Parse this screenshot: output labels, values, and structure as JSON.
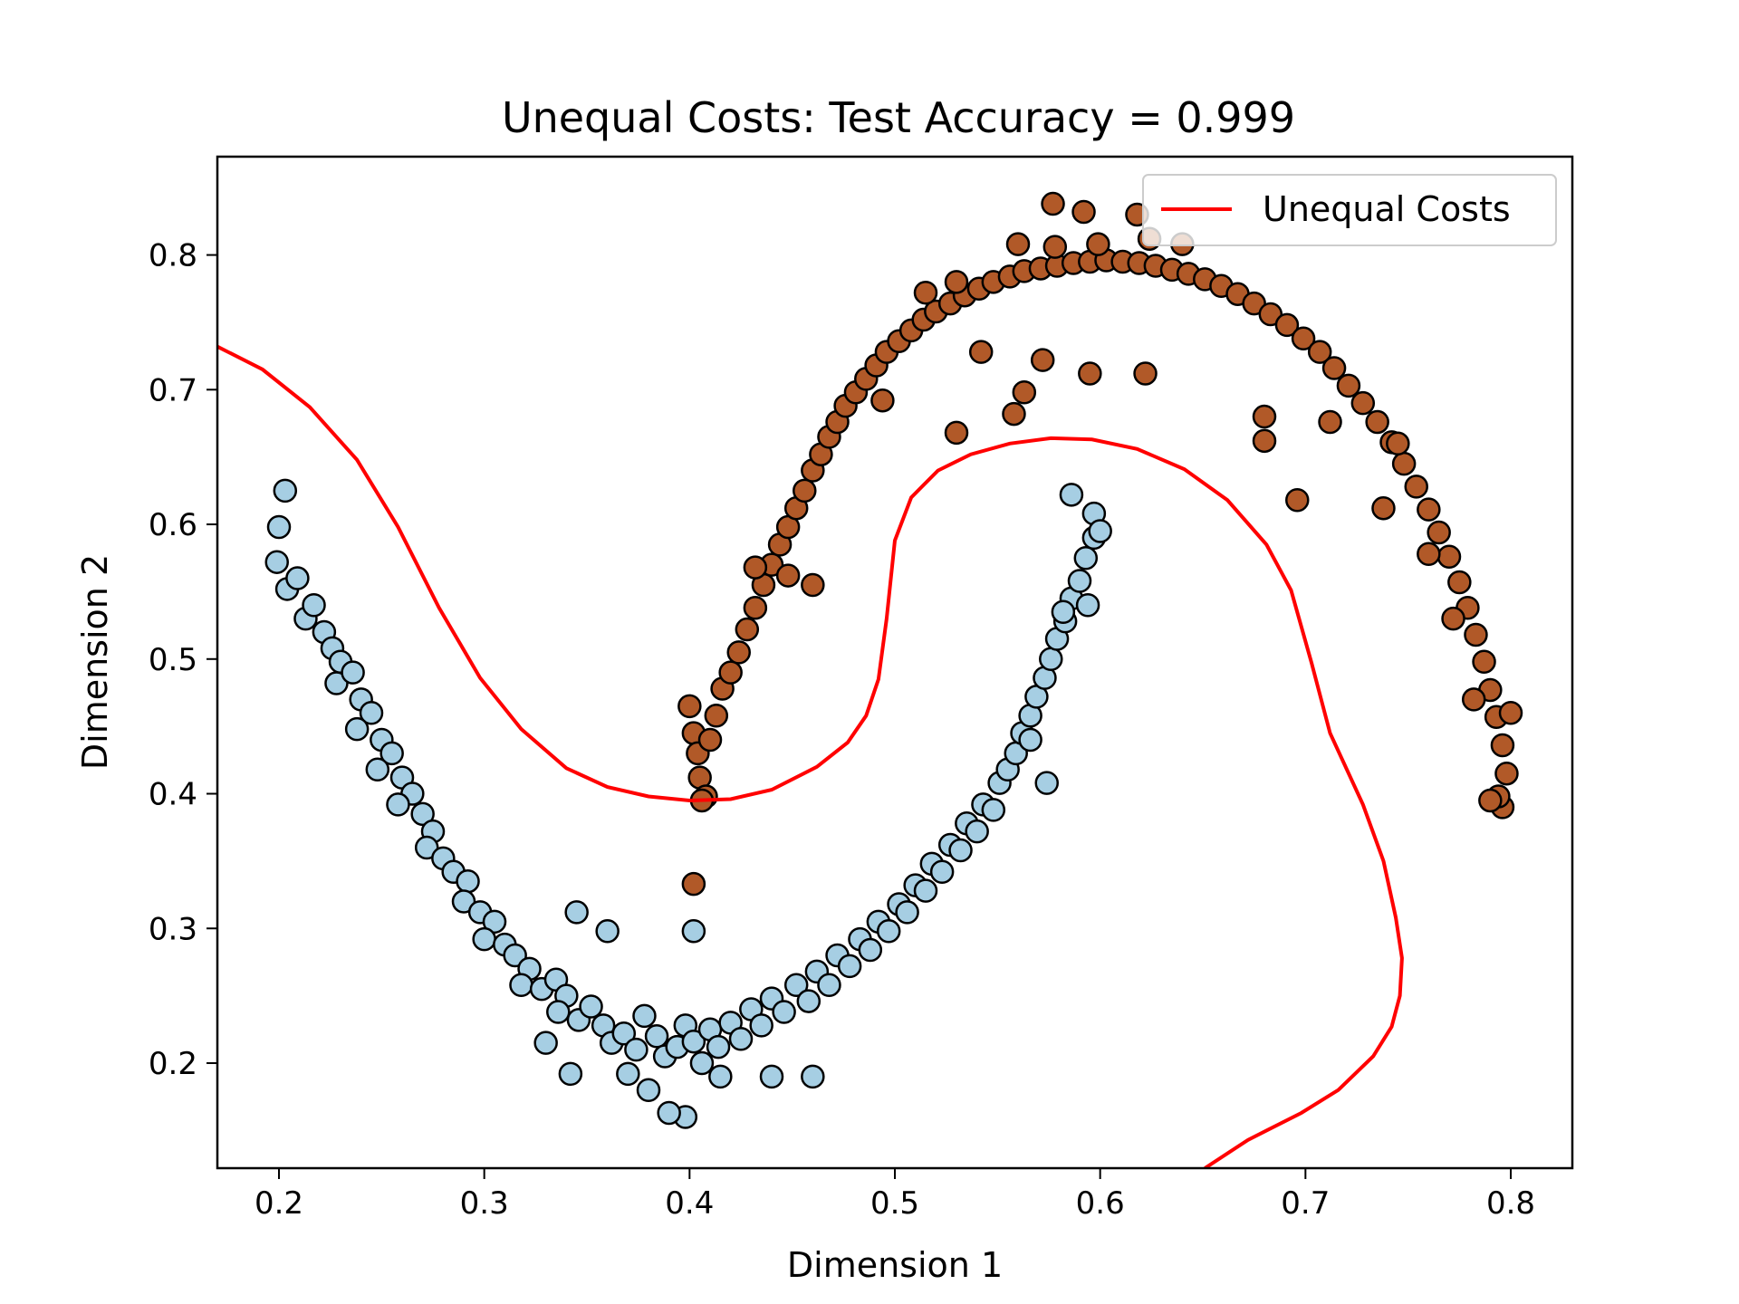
{
  "chart_data": {
    "type": "scatter",
    "title": "Unequal Costs: Test Accuracy = 0.999",
    "xlabel": "Dimension 1",
    "ylabel": "Dimension 2",
    "xlim": [
      0.17,
      0.83
    ],
    "ylim": [
      0.122,
      0.873
    ],
    "xticks": [
      {
        "value": 0.2,
        "label": "0.2"
      },
      {
        "value": 0.3,
        "label": "0.3"
      },
      {
        "value": 0.4,
        "label": "0.4"
      },
      {
        "value": 0.5,
        "label": "0.5"
      },
      {
        "value": 0.6,
        "label": "0.6"
      },
      {
        "value": 0.7,
        "label": "0.7"
      },
      {
        "value": 0.8,
        "label": "0.8"
      }
    ],
    "yticks": [
      {
        "value": 0.2,
        "label": "0.2"
      },
      {
        "value": 0.3,
        "label": "0.3"
      },
      {
        "value": 0.4,
        "label": "0.4"
      },
      {
        "value": 0.5,
        "label": "0.5"
      },
      {
        "value": 0.6,
        "label": "0.6"
      },
      {
        "value": 0.7,
        "label": "0.7"
      },
      {
        "value": 0.8,
        "label": "0.8"
      }
    ],
    "grid": false,
    "legend": {
      "position": "top-right",
      "entries": [
        {
          "label": "Unequal Costs",
          "color": "#ff0000",
          "marker": "line"
        }
      ]
    },
    "boundary": {
      "name": "Unequal Costs",
      "color": "#ff0000",
      "points": [
        [
          0.17,
          0.732
        ],
        [
          0.192,
          0.715
        ],
        [
          0.215,
          0.687
        ],
        [
          0.238,
          0.648
        ],
        [
          0.258,
          0.598
        ],
        [
          0.278,
          0.538
        ],
        [
          0.298,
          0.486
        ],
        [
          0.318,
          0.448
        ],
        [
          0.34,
          0.419
        ],
        [
          0.36,
          0.405
        ],
        [
          0.38,
          0.398
        ],
        [
          0.4,
          0.395
        ],
        [
          0.42,
          0.396
        ],
        [
          0.44,
          0.403
        ],
        [
          0.462,
          0.42
        ],
        [
          0.477,
          0.438
        ],
        [
          0.486,
          0.458
        ],
        [
          0.492,
          0.485
        ],
        [
          0.496,
          0.53
        ],
        [
          0.5,
          0.588
        ],
        [
          0.508,
          0.62
        ],
        [
          0.521,
          0.64
        ],
        [
          0.537,
          0.652
        ],
        [
          0.556,
          0.66
        ],
        [
          0.576,
          0.664
        ],
        [
          0.596,
          0.663
        ],
        [
          0.618,
          0.656
        ],
        [
          0.641,
          0.641
        ],
        [
          0.662,
          0.618
        ],
        [
          0.681,
          0.585
        ],
        [
          0.693,
          0.551
        ],
        [
          0.703,
          0.497
        ],
        [
          0.712,
          0.445
        ],
        [
          0.728,
          0.392
        ],
        [
          0.738,
          0.35
        ],
        [
          0.744,
          0.308
        ],
        [
          0.747,
          0.278
        ],
        [
          0.746,
          0.25
        ],
        [
          0.742,
          0.227
        ],
        [
          0.733,
          0.205
        ],
        [
          0.716,
          0.18
        ],
        [
          0.698,
          0.163
        ],
        [
          0.672,
          0.143
        ],
        [
          0.651,
          0.122
        ]
      ]
    },
    "series": [
      {
        "name": "",
        "color": "#a6cee3",
        "values": [
          [
            0.203,
            0.625
          ],
          [
            0.2,
            0.598
          ],
          [
            0.199,
            0.572
          ],
          [
            0.204,
            0.552
          ],
          [
            0.209,
            0.56
          ],
          [
            0.213,
            0.53
          ],
          [
            0.217,
            0.54
          ],
          [
            0.222,
            0.52
          ],
          [
            0.226,
            0.508
          ],
          [
            0.23,
            0.498
          ],
          [
            0.228,
            0.482
          ],
          [
            0.236,
            0.49
          ],
          [
            0.24,
            0.47
          ],
          [
            0.245,
            0.46
          ],
          [
            0.238,
            0.448
          ],
          [
            0.25,
            0.44
          ],
          [
            0.255,
            0.43
          ],
          [
            0.248,
            0.418
          ],
          [
            0.26,
            0.412
          ],
          [
            0.265,
            0.4
          ],
          [
            0.258,
            0.392
          ],
          [
            0.27,
            0.385
          ],
          [
            0.275,
            0.372
          ],
          [
            0.272,
            0.36
          ],
          [
            0.28,
            0.352
          ],
          [
            0.285,
            0.342
          ],
          [
            0.292,
            0.335
          ],
          [
            0.29,
            0.32
          ],
          [
            0.298,
            0.312
          ],
          [
            0.305,
            0.305
          ],
          [
            0.3,
            0.292
          ],
          [
            0.31,
            0.288
          ],
          [
            0.315,
            0.28
          ],
          [
            0.322,
            0.27
          ],
          [
            0.318,
            0.258
          ],
          [
            0.328,
            0.255
          ],
          [
            0.335,
            0.262
          ],
          [
            0.34,
            0.25
          ],
          [
            0.336,
            0.238
          ],
          [
            0.346,
            0.232
          ],
          [
            0.352,
            0.242
          ],
          [
            0.358,
            0.228
          ],
          [
            0.362,
            0.215
          ],
          [
            0.368,
            0.222
          ],
          [
            0.374,
            0.21
          ],
          [
            0.378,
            0.235
          ],
          [
            0.384,
            0.22
          ],
          [
            0.388,
            0.205
          ],
          [
            0.394,
            0.212
          ],
          [
            0.398,
            0.228
          ],
          [
            0.402,
            0.216
          ],
          [
            0.406,
            0.2
          ],
          [
            0.41,
            0.225
          ],
          [
            0.414,
            0.212
          ],
          [
            0.42,
            0.23
          ],
          [
            0.425,
            0.218
          ],
          [
            0.43,
            0.24
          ],
          [
            0.435,
            0.228
          ],
          [
            0.44,
            0.248
          ],
          [
            0.446,
            0.238
          ],
          [
            0.452,
            0.258
          ],
          [
            0.458,
            0.246
          ],
          [
            0.462,
            0.268
          ],
          [
            0.468,
            0.258
          ],
          [
            0.472,
            0.28
          ],
          [
            0.478,
            0.272
          ],
          [
            0.483,
            0.292
          ],
          [
            0.488,
            0.284
          ],
          [
            0.492,
            0.305
          ],
          [
            0.497,
            0.298
          ],
          [
            0.502,
            0.318
          ],
          [
            0.506,
            0.312
          ],
          [
            0.51,
            0.332
          ],
          [
            0.515,
            0.328
          ],
          [
            0.518,
            0.348
          ],
          [
            0.523,
            0.342
          ],
          [
            0.527,
            0.362
          ],
          [
            0.532,
            0.358
          ],
          [
            0.535,
            0.378
          ],
          [
            0.54,
            0.372
          ],
          [
            0.543,
            0.392
          ],
          [
            0.548,
            0.388
          ],
          [
            0.551,
            0.408
          ],
          [
            0.555,
            0.418
          ],
          [
            0.559,
            0.43
          ],
          [
            0.562,
            0.445
          ],
          [
            0.566,
            0.458
          ],
          [
            0.569,
            0.472
          ],
          [
            0.573,
            0.486
          ],
          [
            0.576,
            0.5
          ],
          [
            0.579,
            0.515
          ],
          [
            0.583,
            0.528
          ],
          [
            0.586,
            0.545
          ],
          [
            0.59,
            0.558
          ],
          [
            0.593,
            0.575
          ],
          [
            0.597,
            0.59
          ],
          [
            0.586,
            0.622
          ],
          [
            0.597,
            0.608
          ],
          [
            0.6,
            0.595
          ],
          [
            0.398,
            0.16
          ],
          [
            0.39,
            0.163
          ],
          [
            0.38,
            0.18
          ],
          [
            0.37,
            0.192
          ],
          [
            0.342,
            0.192
          ],
          [
            0.33,
            0.215
          ],
          [
            0.44,
            0.19
          ],
          [
            0.46,
            0.19
          ],
          [
            0.415,
            0.19
          ],
          [
            0.402,
            0.298
          ],
          [
            0.36,
            0.298
          ],
          [
            0.345,
            0.312
          ],
          [
            0.574,
            0.408
          ],
          [
            0.566,
            0.44
          ],
          [
            0.582,
            0.535
          ],
          [
            0.594,
            0.54
          ]
        ]
      },
      {
        "name": "",
        "color": "#b15928",
        "values": [
          [
            0.4,
            0.465
          ],
          [
            0.402,
            0.445
          ],
          [
            0.404,
            0.43
          ],
          [
            0.405,
            0.412
          ],
          [
            0.408,
            0.398
          ],
          [
            0.406,
            0.395
          ],
          [
            0.41,
            0.44
          ],
          [
            0.413,
            0.458
          ],
          [
            0.416,
            0.478
          ],
          [
            0.42,
            0.49
          ],
          [
            0.424,
            0.505
          ],
          [
            0.428,
            0.522
          ],
          [
            0.432,
            0.538
          ],
          [
            0.436,
            0.555
          ],
          [
            0.44,
            0.57
          ],
          [
            0.444,
            0.585
          ],
          [
            0.448,
            0.598
          ],
          [
            0.452,
            0.612
          ],
          [
            0.456,
            0.625
          ],
          [
            0.46,
            0.64
          ],
          [
            0.464,
            0.652
          ],
          [
            0.468,
            0.665
          ],
          [
            0.472,
            0.676
          ],
          [
            0.476,
            0.688
          ],
          [
            0.481,
            0.698
          ],
          [
            0.486,
            0.708
          ],
          [
            0.491,
            0.718
          ],
          [
            0.496,
            0.728
          ],
          [
            0.502,
            0.736
          ],
          [
            0.508,
            0.744
          ],
          [
            0.514,
            0.752
          ],
          [
            0.52,
            0.758
          ],
          [
            0.527,
            0.764
          ],
          [
            0.534,
            0.77
          ],
          [
            0.541,
            0.775
          ],
          [
            0.548,
            0.78
          ],
          [
            0.556,
            0.784
          ],
          [
            0.563,
            0.788
          ],
          [
            0.571,
            0.79
          ],
          [
            0.579,
            0.792
          ],
          [
            0.587,
            0.794
          ],
          [
            0.595,
            0.795
          ],
          [
            0.603,
            0.796
          ],
          [
            0.611,
            0.795
          ],
          [
            0.619,
            0.794
          ],
          [
            0.627,
            0.792
          ],
          [
            0.635,
            0.789
          ],
          [
            0.643,
            0.786
          ],
          [
            0.651,
            0.782
          ],
          [
            0.659,
            0.777
          ],
          [
            0.667,
            0.771
          ],
          [
            0.675,
            0.764
          ],
          [
            0.683,
            0.756
          ],
          [
            0.691,
            0.748
          ],
          [
            0.699,
            0.738
          ],
          [
            0.707,
            0.728
          ],
          [
            0.714,
            0.716
          ],
          [
            0.721,
            0.703
          ],
          [
            0.728,
            0.69
          ],
          [
            0.735,
            0.676
          ],
          [
            0.742,
            0.661
          ],
          [
            0.748,
            0.645
          ],
          [
            0.754,
            0.628
          ],
          [
            0.76,
            0.611
          ],
          [
            0.765,
            0.594
          ],
          [
            0.77,
            0.576
          ],
          [
            0.775,
            0.557
          ],
          [
            0.779,
            0.538
          ],
          [
            0.783,
            0.518
          ],
          [
            0.787,
            0.498
          ],
          [
            0.79,
            0.477
          ],
          [
            0.793,
            0.457
          ],
          [
            0.796,
            0.436
          ],
          [
            0.798,
            0.415
          ],
          [
            0.796,
            0.39
          ],
          [
            0.794,
            0.398
          ],
          [
            0.8,
            0.46
          ],
          [
            0.577,
            0.838
          ],
          [
            0.592,
            0.832
          ],
          [
            0.618,
            0.83
          ],
          [
            0.56,
            0.808
          ],
          [
            0.578,
            0.806
          ],
          [
            0.599,
            0.808
          ],
          [
            0.624,
            0.812
          ],
          [
            0.64,
            0.808
          ],
          [
            0.53,
            0.78
          ],
          [
            0.515,
            0.772
          ],
          [
            0.494,
            0.692
          ],
          [
            0.542,
            0.728
          ],
          [
            0.572,
            0.722
          ],
          [
            0.595,
            0.712
          ],
          [
            0.622,
            0.712
          ],
          [
            0.558,
            0.682
          ],
          [
            0.563,
            0.698
          ],
          [
            0.53,
            0.668
          ],
          [
            0.76,
            0.578
          ],
          [
            0.745,
            0.66
          ],
          [
            0.738,
            0.612
          ],
          [
            0.712,
            0.676
          ],
          [
            0.68,
            0.662
          ],
          [
            0.68,
            0.68
          ],
          [
            0.696,
            0.618
          ],
          [
            0.772,
            0.53
          ],
          [
            0.782,
            0.47
          ],
          [
            0.79,
            0.395
          ],
          [
            0.402,
            0.333
          ],
          [
            0.432,
            0.568
          ],
          [
            0.448,
            0.562
          ],
          [
            0.46,
            0.555
          ]
        ]
      }
    ]
  }
}
